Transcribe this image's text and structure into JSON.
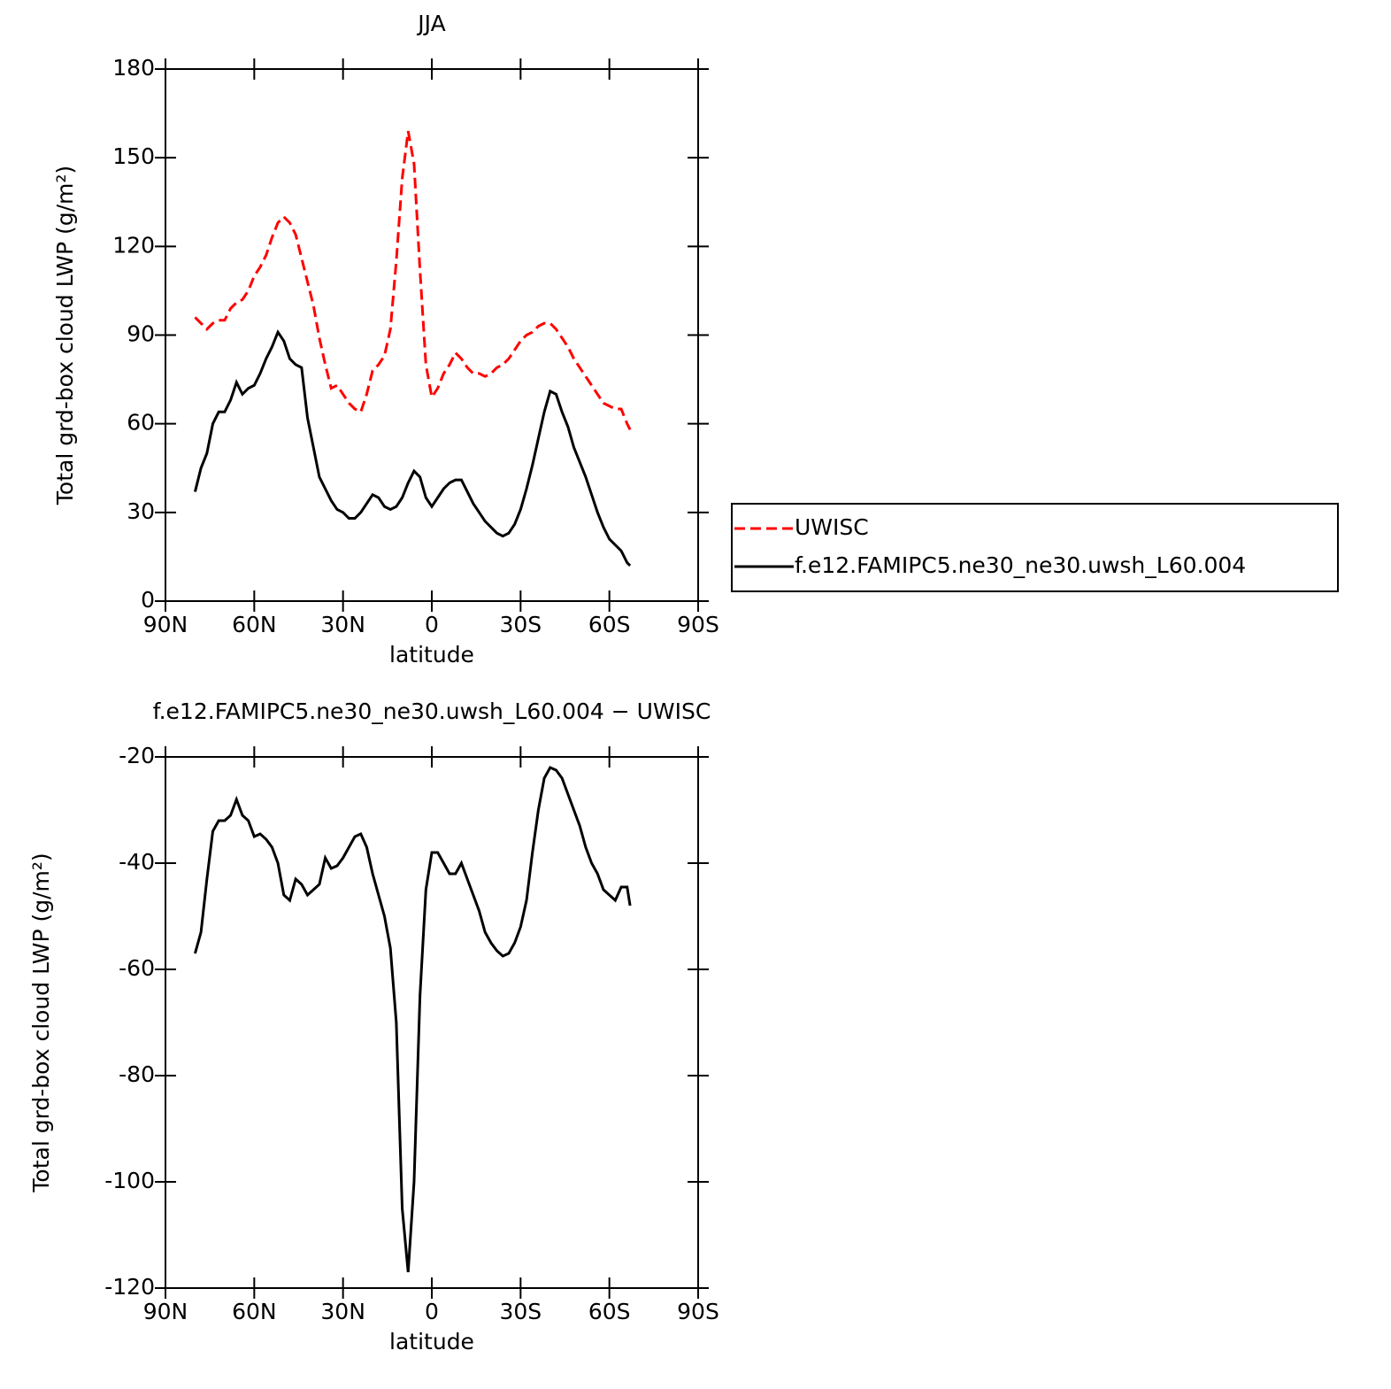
{
  "chart_data": [
    {
      "type": "line",
      "title": "JJA",
      "xlabel": "latitude",
      "ylabel": "Total grd-box cloud LWP (g/m²)",
      "xlim": [
        90,
        -90
      ],
      "xticks": [
        {
          "value": 90,
          "label": "90N"
        },
        {
          "value": 60,
          "label": "60N"
        },
        {
          "value": 30,
          "label": "30N"
        },
        0,
        {
          "value": -30,
          "label": "30S"
        },
        {
          "value": -60,
          "label": "60S"
        },
        {
          "value": -90,
          "label": "90S"
        }
      ],
      "ylim": [
        0,
        180
      ],
      "yticks": [
        0,
        30,
        60,
        90,
        120,
        150,
        180
      ],
      "legend": "right",
      "x": [
        80,
        78,
        76,
        74,
        72,
        70,
        68,
        66,
        64,
        62,
        60,
        58,
        56,
        54,
        52,
        50,
        48,
        46,
        44,
        42,
        40,
        38,
        36,
        34,
        32,
        30,
        28,
        26,
        24,
        22,
        20,
        18,
        16,
        14,
        12,
        10,
        8,
        6,
        4,
        2,
        0,
        -2,
        -4,
        -6,
        -8,
        -10,
        -12,
        -14,
        -16,
        -18,
        -20,
        -22,
        -24,
        -26,
        -28,
        -30,
        -32,
        -34,
        -36,
        -38,
        -40,
        -42,
        -44,
        -46,
        -48,
        -50,
        -52,
        -54,
        -56,
        -58,
        -60,
        -62,
        -64,
        -66,
        -67
      ],
      "series": [
        {
          "name": "UWISC",
          "color": "#ff0000",
          "dash": true,
          "values": [
            96,
            94,
            92,
            94,
            95,
            95,
            99,
            101,
            102,
            105,
            110,
            113,
            117,
            123,
            128,
            130,
            128,
            124,
            116,
            108,
            100,
            89,
            80,
            72,
            73,
            70,
            67,
            65,
            64,
            70,
            78,
            80,
            83,
            92,
            115,
            143,
            159,
            148,
            112,
            80,
            69,
            72,
            77,
            80,
            84,
            82,
            79,
            77,
            77,
            76,
            77,
            79,
            80,
            82,
            85,
            88,
            90,
            91,
            93,
            94,
            94,
            92,
            89,
            86,
            82,
            79,
            76,
            73,
            70,
            67,
            66,
            65,
            65,
            60,
            58
          ]
        },
        {
          "name": "f.e12.FAMIPC5.ne30_ne30.uwsh_L60.004",
          "color": "#000000",
          "dash": false,
          "values": [
            37,
            45,
            50,
            60,
            64,
            64,
            68,
            74,
            70,
            72,
            73,
            77,
            82,
            86,
            91,
            88,
            82,
            80,
            79,
            62,
            52,
            42,
            38,
            34,
            31,
            30,
            28,
            28,
            30,
            33,
            36,
            35,
            32,
            31,
            32,
            35,
            40,
            44,
            42,
            35,
            32,
            35,
            38,
            40,
            41,
            41,
            37,
            33,
            30,
            27,
            25,
            23,
            22,
            23,
            26,
            31,
            38,
            46,
            55,
            64,
            71,
            70,
            64,
            59,
            52,
            47,
            42,
            36,
            30,
            25,
            21,
            19,
            17,
            13,
            12
          ]
        }
      ]
    },
    {
      "type": "line",
      "title": "f.e12.FAMIPC5.ne30_ne30.uwsh_L60.004 − UWISC",
      "xlabel": "latitude",
      "ylabel": "Total grd-box cloud LWP (g/m²)",
      "xlim": [
        90,
        -90
      ],
      "xticks": [
        {
          "value": 90,
          "label": "90N"
        },
        {
          "value": 60,
          "label": "60N"
        },
        {
          "value": 30,
          "label": "30N"
        },
        0,
        {
          "value": -30,
          "label": "30S"
        },
        {
          "value": -60,
          "label": "60S"
        },
        {
          "value": -90,
          "label": "90S"
        }
      ],
      "ylim": [
        -120,
        -20
      ],
      "yticks": [
        -120,
        -100,
        -80,
        -60,
        -40,
        -20
      ],
      "x": [
        80,
        78,
        76,
        74,
        72,
        70,
        68,
        66,
        64,
        62,
        60,
        58,
        56,
        54,
        52,
        50,
        48,
        46,
        44,
        42,
        40,
        38,
        36,
        34,
        32,
        30,
        28,
        26,
        24,
        22,
        20,
        18,
        16,
        14,
        12,
        10,
        8,
        6,
        4,
        2,
        0,
        -2,
        -4,
        -6,
        -8,
        -10,
        -12,
        -14,
        -16,
        -18,
        -20,
        -22,
        -24,
        -26,
        -28,
        -30,
        -32,
        -34,
        -36,
        -38,
        -40,
        -42,
        -44,
        -46,
        -48,
        -50,
        -52,
        -54,
        -56,
        -58,
        -60,
        -62,
        -64,
        -66,
        -67
      ],
      "color": "#000000",
      "values": [
        -57,
        -53,
        -43,
        -34,
        -32,
        -32,
        -31,
        -28,
        -31,
        -32,
        -35,
        -34.5,
        -35.5,
        -37,
        -40,
        -46,
        -47,
        -43,
        -44,
        -46,
        -45,
        -44,
        -39,
        -41,
        -40.5,
        -39,
        -37,
        -35,
        -34.5,
        -37,
        -42,
        -46,
        -50,
        -56,
        -70,
        -105,
        -117,
        -100,
        -65,
        -45,
        -38,
        -38,
        -40,
        -42,
        -42,
        -40,
        -43,
        -46,
        -49,
        -53,
        -55,
        -56.5,
        -57.5,
        -57,
        -55,
        -52,
        -47,
        -38,
        -30,
        -24,
        -22,
        -22.5,
        -24,
        -27,
        -30,
        -33,
        -37,
        -40,
        -42,
        -45,
        -46,
        -47,
        -44.5,
        -44.5,
        -48
      ]
    }
  ]
}
